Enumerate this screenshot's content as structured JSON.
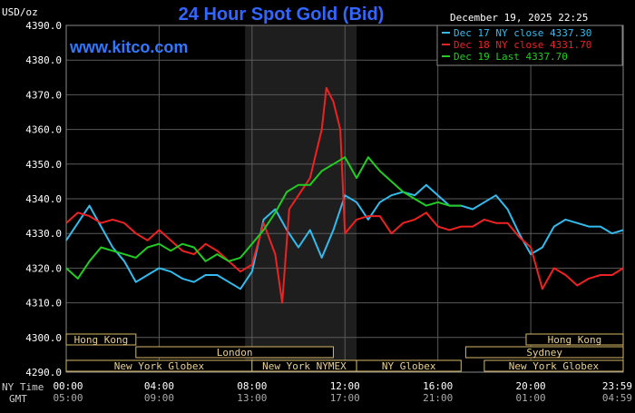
{
  "header": {
    "unit_label": "USD/oz",
    "title": "24 Hour Spot Gold (Bid)",
    "watermark": "www.kitco.com",
    "datetime": "December 19, 2025 22:25"
  },
  "legend": [
    {
      "text": "Dec 17 NY close 4337.30",
      "color": "#33bbee"
    },
    {
      "text": "Dec 18 NY close 4331.70",
      "color": "#ee2222"
    },
    {
      "text": "Dec 19 Last 4337.70",
      "color": "#22cc22"
    }
  ],
  "bottom_axis": {
    "ny_label": "NY Time",
    "gmt_label": "GMT",
    "ny_ticks": [
      "00:00",
      "04:00",
      "08:00",
      "12:00",
      "16:00",
      "20:00",
      "23:59"
    ],
    "gmt_ticks": [
      "05:00",
      "09:00",
      "13:00",
      "17:00",
      "21:00",
      "01:00",
      "04:59"
    ]
  },
  "sessions": [
    {
      "label": "Hong Kong",
      "start": 0,
      "end": 3.0,
      "row": 0
    },
    {
      "label": "Hong Kong",
      "start": 19.8,
      "end": 23.98,
      "row": 0
    },
    {
      "label": "London",
      "start": 3.0,
      "end": 11.5,
      "row": 1
    },
    {
      "label": "Sydney",
      "start": 17.2,
      "end": 23.98,
      "row": 1
    },
    {
      "label": "New York Globex",
      "start": 0,
      "end": 8.0,
      "row": 2
    },
    {
      "label": "New York NYMEX",
      "start": 8.0,
      "end": 12.5,
      "row": 2
    },
    {
      "label": "NY Globex",
      "start": 12.5,
      "end": 17.0,
      "row": 2
    },
    {
      "label": "New York Globex",
      "start": 18.0,
      "end": 23.98,
      "row": 2
    }
  ],
  "chart_data": {
    "type": "line",
    "x_unit": "hours (NY time)",
    "xlim": [
      0,
      23.98
    ],
    "ylim": [
      4290,
      4390
    ],
    "yticks": [
      4290,
      4300,
      4310,
      4320,
      4330,
      4340,
      4350,
      4360,
      4370,
      4380,
      4390
    ],
    "ytick_labels": [
      "4290.0",
      "4300.0",
      "4310.0",
      "4320.0",
      "4330.0",
      "4340.0",
      "4350.0",
      "4360.0",
      "4370.0",
      "4380.0",
      "4390.0"
    ],
    "shaded_region": [
      7.7,
      12.5
    ],
    "grid": true,
    "series": [
      {
        "name": "Dec 17 NY close 4337.30",
        "color": "#33bbee",
        "x": [
          0,
          0.5,
          1.0,
          1.5,
          2.0,
          2.5,
          3.0,
          3.5,
          4.0,
          4.5,
          5.0,
          5.5,
          6.0,
          6.5,
          7.0,
          7.5,
          8.0,
          8.5,
          9.0,
          9.5,
          10.0,
          10.5,
          11.0,
          11.5,
          12.0,
          12.5,
          13.0,
          13.5,
          14.0,
          14.5,
          15.0,
          15.5,
          16.0,
          16.5,
          17.0,
          17.5,
          18.0,
          18.5,
          19.0,
          19.5,
          20.0,
          20.5,
          21.0,
          21.5,
          22.0,
          22.5,
          23.0,
          23.5,
          23.98
        ],
        "y": [
          4328,
          4333,
          4338,
          4332,
          4326,
          4322,
          4316,
          4318,
          4320,
          4319,
          4317,
          4316,
          4318,
          4318,
          4316,
          4314,
          4319,
          4334,
          4337,
          4331,
          4326,
          4331,
          4323,
          4331,
          4341,
          4339,
          4334,
          4339,
          4341,
          4342,
          4341,
          4344,
          4341,
          4338,
          4338,
          4337,
          4339,
          4341,
          4337,
          4330,
          4324,
          4326,
          4332,
          4334,
          4333,
          4332,
          4332,
          4330,
          4331
        ]
      },
      {
        "name": "Dec 18 NY close 4331.70",
        "color": "#ee2222",
        "x": [
          0,
          0.5,
          1.0,
          1.5,
          2.0,
          2.5,
          3.0,
          3.5,
          4.0,
          4.5,
          5.0,
          5.5,
          6.0,
          6.5,
          7.0,
          7.5,
          8.0,
          8.5,
          9.0,
          9.3,
          9.6,
          10.0,
          10.5,
          11.0,
          11.2,
          11.5,
          11.8,
          12.0,
          12.5,
          13.0,
          13.5,
          14.0,
          14.5,
          15.0,
          15.5,
          16.0,
          16.5,
          17.0,
          17.5,
          18.0,
          18.5,
          19.0,
          19.5,
          20.0,
          20.5,
          21.0,
          21.5,
          22.0,
          22.5,
          23.0,
          23.5,
          23.98
        ],
        "y": [
          4333,
          4336,
          4335,
          4333,
          4334,
          4333,
          4330,
          4328,
          4331,
          4328,
          4325,
          4324,
          4327,
          4325,
          4322,
          4319,
          4321,
          4333,
          4324,
          4310,
          4337,
          4341,
          4346,
          4360,
          4372,
          4368,
          4360,
          4330,
          4334,
          4335,
          4335,
          4330,
          4333,
          4334,
          4336,
          4332,
          4331,
          4332,
          4332,
          4334,
          4333,
          4333,
          4329,
          4326,
          4314,
          4320,
          4318,
          4315,
          4317,
          4318,
          4318,
          4320
        ]
      },
      {
        "name": "Dec 19 Last 4337.70",
        "color": "#22cc22",
        "x": [
          0,
          0.5,
          1.0,
          1.5,
          2.0,
          2.5,
          3.0,
          3.5,
          4.0,
          4.5,
          5.0,
          5.5,
          6.0,
          6.5,
          7.0,
          7.5,
          8.0,
          8.5,
          9.0,
          9.5,
          10.0,
          10.5,
          11.0,
          11.5,
          12.0,
          12.5,
          13.0,
          13.5,
          14.0,
          14.5,
          15.0,
          15.5,
          16.0,
          16.5,
          17.0
        ],
        "y": [
          4320,
          4317,
          4322,
          4326,
          4325,
          4324,
          4323,
          4326,
          4327,
          4325,
          4327,
          4326,
          4322,
          4324,
          4322,
          4323,
          4327,
          4331,
          4336,
          4342,
          4344,
          4344,
          4348,
          4350,
          4352,
          4346,
          4352,
          4348,
          4345,
          4342,
          4340,
          4338,
          4339,
          4338,
          4338
        ]
      }
    ]
  }
}
